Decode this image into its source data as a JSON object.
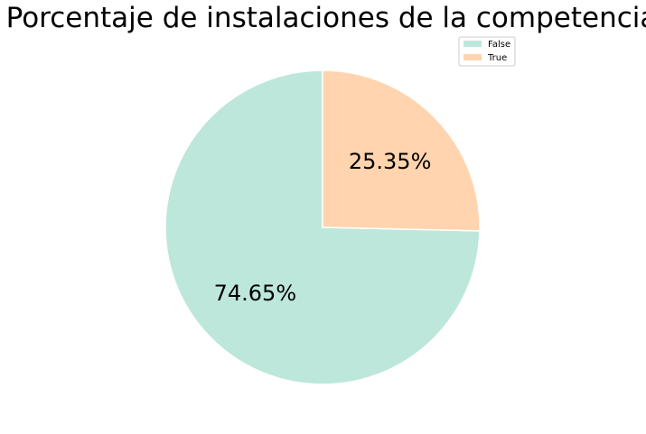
{
  "chart_data": {
    "type": "pie",
    "title": "Porcentaje de instalaciones de la competencia",
    "categories": [
      "False",
      "True"
    ],
    "values": [
      74.65,
      25.35
    ],
    "labels": [
      "74.65%",
      "25.35%"
    ],
    "colors": [
      "#bee7db",
      "#ffd4ae"
    ],
    "start_angle_deg": 90,
    "direction": "counterclockwise",
    "legend": {
      "position": "top-right",
      "entries": [
        "False",
        "True"
      ]
    }
  }
}
